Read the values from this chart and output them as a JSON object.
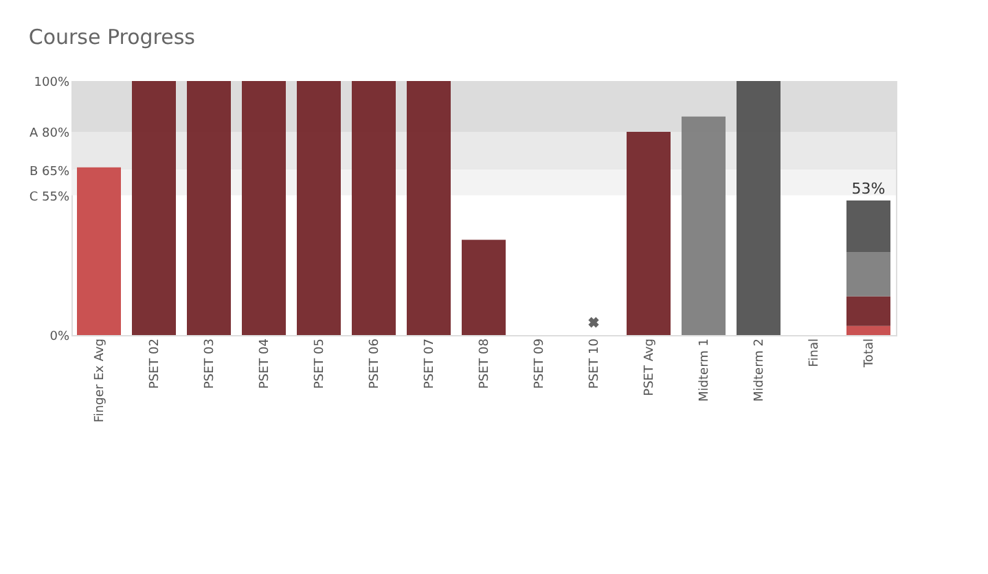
{
  "chart_data": {
    "type": "bar",
    "title": "Course Progress",
    "stacked": true,
    "categories": [
      "Finger Ex Avg",
      "PSET 02",
      "PSET 03",
      "PSET 04",
      "PSET 05",
      "PSET 06",
      "PSET 07",
      "PSET 08",
      "PSET 09",
      "PSET 10",
      "PSET Avg",
      "Midterm 1",
      "Midterm 2",
      "Final",
      "Total"
    ],
    "series": [
      {
        "color": "#c84c4c",
        "values": [
          66,
          null,
          null,
          null,
          null,
          null,
          null,
          null,
          null,
          null,
          null,
          null,
          null,
          null,
          3.6
        ]
      },
      {
        "color": "#772a2e",
        "values": [
          null,
          100,
          100,
          100,
          100,
          100,
          100,
          37.5,
          0,
          null,
          80,
          null,
          null,
          null,
          11.7
        ]
      },
      {
        "color": "#808080",
        "values": [
          null,
          null,
          null,
          null,
          null,
          null,
          null,
          null,
          null,
          null,
          null,
          86,
          null,
          null,
          17.4
        ]
      },
      {
        "color": "#565656",
        "values": [
          null,
          null,
          null,
          null,
          null,
          null,
          null,
          null,
          null,
          null,
          null,
          null,
          100,
          0,
          20.3
        ]
      },
      {
        "type": "scatter",
        "marker": "cross",
        "color": "#222222",
        "values": [
          null,
          null,
          null,
          null,
          null,
          null,
          null,
          null,
          null,
          5,
          null,
          null,
          null,
          null,
          null
        ]
      }
    ],
    "totals": [
      null,
      null,
      null,
      null,
      null,
      null,
      null,
      null,
      null,
      null,
      null,
      null,
      null,
      null,
      "53%"
    ],
    "ylim": [
      0,
      100
    ],
    "yticks": [
      {
        "value": 0,
        "label": "0%"
      },
      {
        "value": 55,
        "label": "C 55%"
      },
      {
        "value": 65,
        "label": "B 65%"
      },
      {
        "value": 80,
        "label": "A 80%"
      },
      {
        "value": 100,
        "label": "100%"
      }
    ],
    "bands": [
      {
        "axis": "y",
        "from": 80,
        "to": 100,
        "color": "#dcdcdc"
      },
      {
        "axis": "y",
        "from": 65,
        "to": 80,
        "color": "#e9e9e9"
      },
      {
        "axis": "y",
        "from": 55,
        "to": 65,
        "color": "#f3f3f3"
      }
    ],
    "grid": false
  }
}
